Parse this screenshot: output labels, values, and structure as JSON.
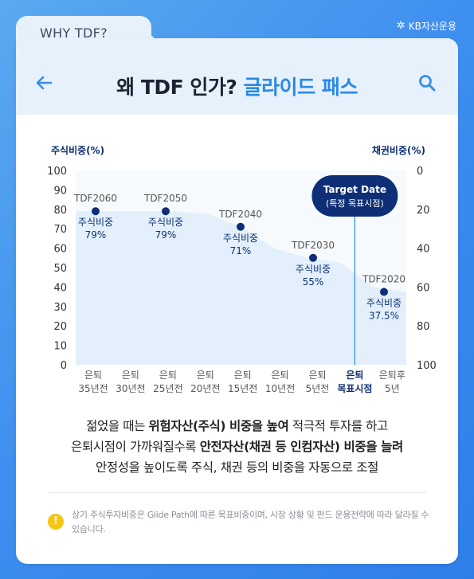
{
  "brand": {
    "name": "KB자산운용"
  },
  "tab": {
    "label": "WHY TDF?"
  },
  "header": {
    "title_main": "왜 TDF 인가?",
    "title_accent": "글라이드 패스"
  },
  "colors": {
    "accent": "#2a88e6",
    "navy": "#0e2f75",
    "area": "#e3f0fc",
    "bg": "#3f8ff0",
    "note": "#f6c515"
  },
  "chart_data": {
    "type": "area",
    "left_axis_label": "주식비중(%)",
    "right_axis_label": "채권비중(%)",
    "left_ticks": [
      "100",
      "90",
      "80",
      "70",
      "60",
      "50",
      "40",
      "30",
      "20",
      "10",
      "0"
    ],
    "right_ticks": [
      "0",
      "20",
      "40",
      "60",
      "80",
      "100"
    ],
    "categories": [
      {
        "line1": "은퇴",
        "line2": "35년전"
      },
      {
        "line1": "은퇴",
        "line2": "30년전"
      },
      {
        "line1": "은퇴",
        "line2": "25년전"
      },
      {
        "line1": "은퇴",
        "line2": "20년전"
      },
      {
        "line1": "은퇴",
        "line2": "15년전"
      },
      {
        "line1": "은퇴",
        "line2": "10년전"
      },
      {
        "line1": "은퇴",
        "line2": "5년전"
      },
      {
        "line1": "은퇴",
        "line2": "목표시점"
      },
      {
        "line1": "은퇴후",
        "line2": "5년"
      }
    ],
    "area_values": [
      79,
      79,
      79,
      79,
      77.5,
      71,
      60,
      55,
      52.5,
      40,
      37.5
    ],
    "points": [
      {
        "fund": "TDF2060",
        "label": "주식비중",
        "value_text": "79%",
        "value": 79,
        "x": 0.5
      },
      {
        "fund": "TDF2050",
        "label": "주식비중",
        "value_text": "79%",
        "value": 79,
        "x": 2.4
      },
      {
        "fund": "TDF2040",
        "label": "주식비중",
        "value_text": "71%",
        "value": 71,
        "x": 4.4
      },
      {
        "fund": "TDF2030",
        "label": "주식비중",
        "value_text": "55%",
        "value": 55,
        "x": 6.4
      },
      {
        "fund": "TDF2020",
        "label": "주식비중",
        "value_text": "37.5%",
        "value": 37.5,
        "x": 8.25
      }
    ],
    "target": {
      "title": "Target Date",
      "subtitle": "(특정 목표시점)",
      "x": 7.4
    },
    "ylim": [
      0,
      100
    ]
  },
  "description": {
    "l1a": "젊었을 때는 ",
    "l1b": "위험자산(주식) 비중을 높여",
    "l1c": " 적극적 투자를 하고",
    "l2a": "은퇴시점이 가까워질수록 ",
    "l2b": "안전자산(채권 등 인컴자산) 비중을 늘려",
    "l3": "안정성을 높이도록 주식, 채권 등의 비중을 자동으로 조절"
  },
  "note": {
    "icon": "!",
    "text": "상기 주식투자비중은 Glide Path에 따른 목표비중이며, 시장 상황 및 펀드 운용전략에 따라 달라질 수 있습니다."
  }
}
